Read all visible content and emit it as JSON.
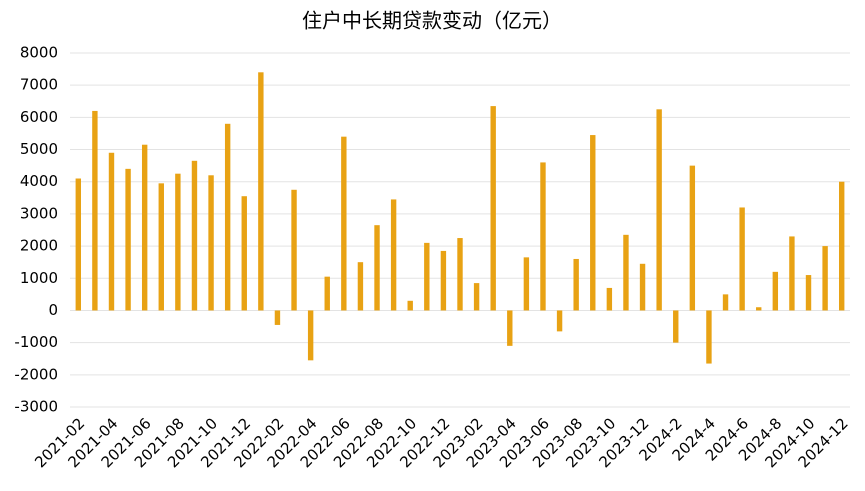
{
  "chart_data": {
    "type": "bar",
    "title": "住户中长期贷款变动（亿元）",
    "categories": [
      "2021-02",
      null,
      "2021-04",
      null,
      "2021-06",
      null,
      "2021-08",
      null,
      "2021-10",
      null,
      "2021-12",
      null,
      "2022-02",
      null,
      "2022-04",
      null,
      "2022-06",
      null,
      "2022-08",
      null,
      "2022-10",
      null,
      "2022-12",
      null,
      "2023-02",
      null,
      "2023-04",
      null,
      "2023-06",
      null,
      "2023-08",
      null,
      "2023-10",
      null,
      "2023-12",
      null,
      "2024-2",
      null,
      "2024-4",
      null,
      "2024-6",
      null,
      "2024-8",
      null,
      "2024-10",
      null,
      "2024-12"
    ],
    "values": [
      4100,
      6200,
      4900,
      4400,
      5150,
      3950,
      4250,
      4650,
      4200,
      5800,
      3550,
      7400,
      -450,
      3750,
      -1550,
      1050,
      5400,
      1500,
      2650,
      3450,
      300,
      2100,
      1850,
      2250,
      850,
      6350,
      -1100,
      1650,
      4600,
      -650,
      1600,
      5450,
      700,
      2350,
      1450,
      6250,
      -1000,
      4500,
      -1650,
      500,
      3200,
      100,
      1200,
      2300,
      1100,
      2000,
      4000
    ],
    "color": "#e8a214",
    "ylim": [
      -3000,
      8000
    ],
    "yticks": [
      -3000,
      -2000,
      -1000,
      0,
      1000,
      2000,
      3000,
      4000,
      5000,
      6000,
      7000,
      8000
    ],
    "grid": true
  }
}
